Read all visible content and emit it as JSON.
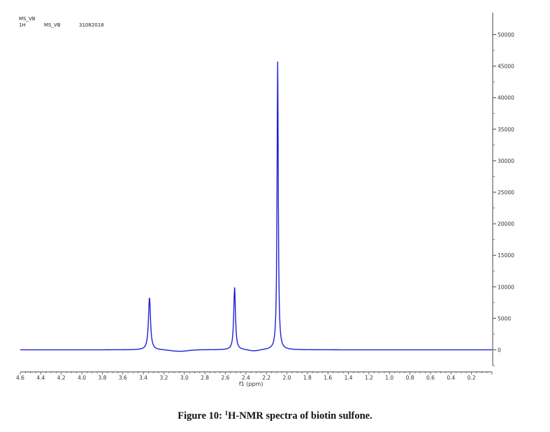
{
  "header": {
    "line1": "MS_VB",
    "nucleus": "1H",
    "sample": "MS_VB",
    "date": "31082018"
  },
  "caption": {
    "prefix": "Figure 10: ",
    "sup": "1",
    "text": "H-NMR spectra of biotin sulfone."
  },
  "chart_data": {
    "type": "line",
    "xlabel": "f1 (ppm)",
    "ylabel": "",
    "x_reversed": true,
    "xlim": [
      4.6,
      0.0
    ],
    "ylim": [
      -2500,
      53500
    ],
    "x_ticks": [
      "4.6",
      "4.4",
      "4.2",
      "4.0",
      "3.8",
      "3.6",
      "3.4",
      "3.2",
      "3.0",
      "2.8",
      "2.6",
      "2.4",
      "2.2",
      "2.0",
      "1.8",
      "1.6",
      "1.4",
      "1.2",
      "1.0",
      "0.8",
      "0.6",
      "0.4",
      "0.2"
    ],
    "y_ticks": [
      "50000",
      "45000",
      "40000",
      "35000",
      "30000",
      "25000",
      "20000",
      "15000",
      "10000",
      "5000",
      "0"
    ],
    "series_color": "#1f1fd6",
    "peaks": [
      {
        "ppm": 3.34,
        "intensity": 8300,
        "width": 0.012
      },
      {
        "ppm": 2.51,
        "intensity": 9900,
        "width": 0.01
      },
      {
        "ppm": 2.09,
        "intensity": 45800,
        "width": 0.007
      }
    ],
    "grid": false,
    "legend": "none"
  }
}
